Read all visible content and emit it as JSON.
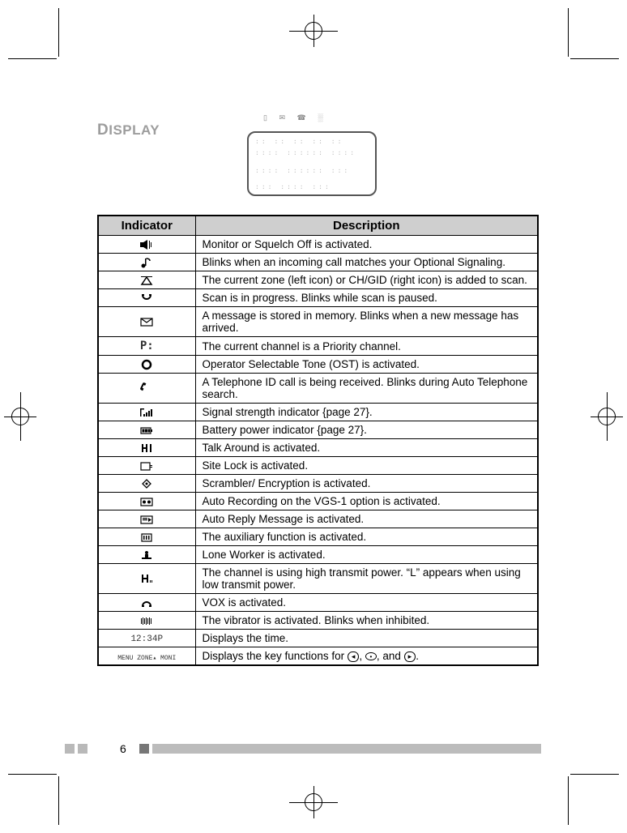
{
  "page": {
    "title": "Display",
    "page_number": "6"
  },
  "colors": {
    "heading_grey": "#9d9d9d",
    "table_header_bg": "#cfcfcf",
    "border": "#000000",
    "footer_block_light": "#bcbcbc",
    "footer_block_dark": "#777777"
  },
  "table": {
    "columns": [
      "Indicator",
      "Description"
    ],
    "rows": [
      {
        "icon": "speaker",
        "desc": "Monitor or Squelch Off is activated."
      },
      {
        "icon": "note",
        "desc": "Blinks when an incoming call matches your Optional Signaling."
      },
      {
        "icon": "triangle",
        "desc": "The current zone (left icon) or CH/GID (right icon) is added to scan."
      },
      {
        "icon": "scan",
        "desc": "Scan is in progress.  Blinks while scan is paused."
      },
      {
        "icon": "envelope",
        "desc": "A message is stored in memory.  Blinks when a new message has arrived."
      },
      {
        "icon": "priority",
        "desc": "The current channel is a Priority channel."
      },
      {
        "icon": "ost",
        "desc": "Operator Selectable Tone (OST) is activated."
      },
      {
        "icon": "phone",
        "desc": "A Telephone ID call is being received.  Blinks during Auto Telephone search."
      },
      {
        "icon": "signal",
        "desc": "Signal strength indicator {page 27}."
      },
      {
        "icon": "battery",
        "desc": "Battery power indicator {page 27}."
      },
      {
        "icon": "talkaround",
        "desc": "Talk Around is activated."
      },
      {
        "icon": "sitelock",
        "desc": "Site Lock is activated."
      },
      {
        "icon": "scrambler",
        "desc": "Scrambler/ Encryption is activated."
      },
      {
        "icon": "rec",
        "desc": "Auto Recording on the VGS-1 option is activated."
      },
      {
        "icon": "reply",
        "desc": "Auto Reply Message is activated."
      },
      {
        "icon": "aux",
        "desc": "The auxiliary function is activated."
      },
      {
        "icon": "loneworker",
        "desc": "Lone Worker is activated."
      },
      {
        "icon": "hpower",
        "desc": "The channel is using high transmit power.  “L” appears when using low transmit power."
      },
      {
        "icon": "vox",
        "desc": "VOX is activated."
      },
      {
        "icon": "vibe",
        "desc": "The vibrator is activated.  Blinks when inhibited."
      },
      {
        "icon": "time",
        "desc": "Displays the time."
      },
      {
        "icon": "keys",
        "desc_prefix": "Displays the key functions for ",
        "desc_mid": ", ",
        "desc_mid2": ", and ",
        "desc_suffix": "."
      }
    ],
    "time_label": "12:34P",
    "keys_label": "MENU  ZONE▴  MONI",
    "key_glyphs": {
      "left": "◂",
      "mid": "•",
      "right": "▸"
    }
  },
  "lcd": {
    "top_icons_text": "▯  ✉  ☎  ░"
  }
}
